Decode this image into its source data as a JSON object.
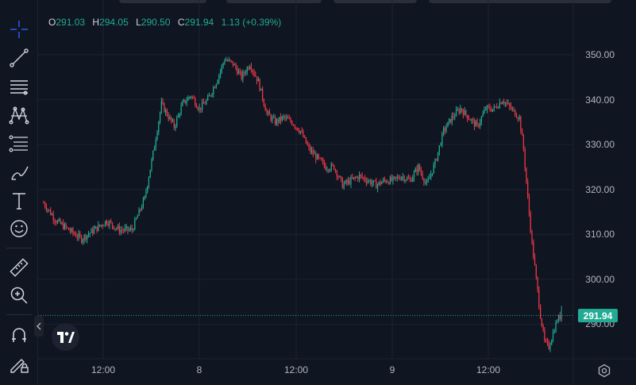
{
  "ohlc": {
    "o_key": "O",
    "o_val": "291.03",
    "h_key": "H",
    "h_val": "294.05",
    "l_key": "L",
    "l_val": "290.50",
    "c_key": "C",
    "c_val": "291.94",
    "change": "1.13 (+0.39%)"
  },
  "last_price_label": "291.94",
  "toolbar": {
    "items": [
      "crosshair-icon",
      "trend-line-icon",
      "horizontal-lines-icon",
      "pattern-icon",
      "fib-icon",
      "brush-icon",
      "text-icon",
      "emoji-icon",
      "ruler-icon",
      "zoom-in-icon",
      "magnet-icon",
      "lock-drawing-icon"
    ]
  },
  "colors": {
    "up": "#22ab94",
    "down": "#f23645",
    "background": "#0f1521",
    "grid": "#1c2230"
  },
  "chart_data": {
    "type": "candlestick",
    "y_ticks": [
      "350.00",
      "340.00",
      "330.00",
      "320.00",
      "310.00",
      "300.00",
      "290.00"
    ],
    "x_ticks": [
      "12:00",
      "8",
      "12:00",
      "9",
      "12:00"
    ],
    "ylim": [
      282,
      356
    ],
    "last_price": 291.94,
    "close_path": [
      [
        0,
        317
      ],
      [
        3,
        313
      ],
      [
        6,
        311
      ],
      [
        9,
        309
      ],
      [
        12,
        311
      ],
      [
        15,
        313
      ],
      [
        18,
        311
      ],
      [
        21,
        311
      ],
      [
        24,
        318
      ],
      [
        26,
        328
      ],
      [
        28,
        339
      ],
      [
        31,
        334
      ],
      [
        33,
        339
      ],
      [
        35,
        341
      ],
      [
        37,
        338
      ],
      [
        39,
        340
      ],
      [
        41,
        344
      ],
      [
        43,
        349
      ],
      [
        45,
        348
      ],
      [
        47,
        345
      ],
      [
        49,
        348
      ],
      [
        51,
        344
      ],
      [
        53,
        337
      ],
      [
        55,
        335
      ],
      [
        57,
        336
      ],
      [
        59,
        335
      ],
      [
        61,
        333
      ],
      [
        63,
        329
      ],
      [
        65,
        327
      ],
      [
        67,
        325
      ],
      [
        69,
        325
      ],
      [
        71,
        321
      ],
      [
        73,
        322
      ],
      [
        75,
        323
      ],
      [
        77,
        322
      ],
      [
        79,
        321
      ],
      [
        81,
        322
      ],
      [
        83,
        322
      ],
      [
        85,
        323
      ],
      [
        87,
        322
      ],
      [
        89,
        325
      ],
      [
        91,
        321
      ],
      [
        93,
        326
      ],
      [
        95,
        333
      ],
      [
        97,
        336
      ],
      [
        99,
        338
      ],
      [
        101,
        336
      ],
      [
        103,
        334
      ],
      [
        105,
        338
      ],
      [
        107,
        338
      ],
      [
        109,
        340
      ],
      [
        111,
        338
      ],
      [
        113,
        336
      ],
      [
        114,
        329
      ],
      [
        115,
        318
      ],
      [
        116,
        308
      ],
      [
        117,
        300
      ],
      [
        118,
        292
      ],
      [
        119,
        286
      ],
      [
        120,
        285
      ],
      [
        121,
        288
      ],
      [
        122,
        291
      ],
      [
        123,
        292
      ]
    ]
  }
}
